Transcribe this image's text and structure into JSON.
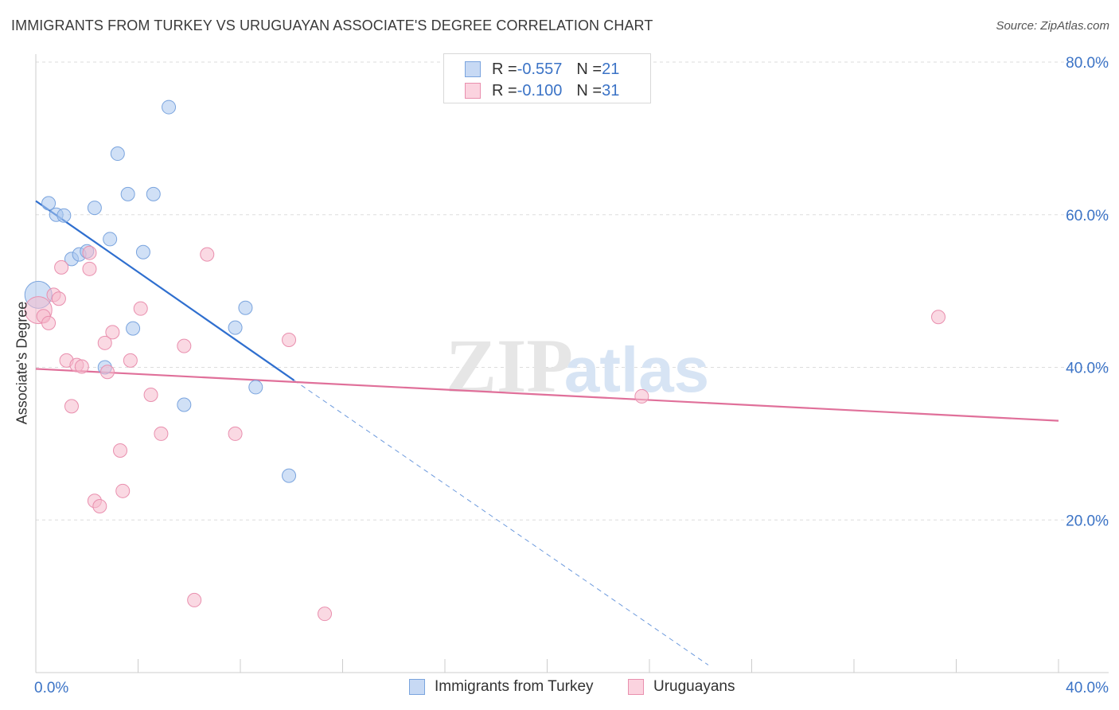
{
  "header": {
    "title": "IMMIGRANTS FROM TURKEY VS URUGUAYAN ASSOCIATE'S DEGREE CORRELATION CHART",
    "source": "Source: ZipAtlas.com"
  },
  "watermark": {
    "zip": "ZIP",
    "atlas": "atlas"
  },
  "legend": {
    "rows": [
      {
        "r_label": "R = ",
        "r_value": "-0.557",
        "n_label": "N = ",
        "n_value": "21",
        "color": "#a9c6ef"
      },
      {
        "r_label": "R = ",
        "r_value": "-0.100",
        "n_label": "N = ",
        "n_value": "31",
        "color": "#f5b9cc"
      }
    ]
  },
  "bottom_legend": {
    "items": [
      {
        "label": "Immigrants from Turkey",
        "color": "#a9c6ef"
      },
      {
        "label": "Uruguayans",
        "color": "#f5b9cc"
      }
    ]
  },
  "chart_data": {
    "type": "scatter",
    "title": "IMMIGRANTS FROM TURKEY VS URUGUAYAN ASSOCIATE'S DEGREE CORRELATION CHART",
    "xlabel": "",
    "ylabel": "Associate's Degree",
    "xlim": [
      0,
      40
    ],
    "ylim": [
      0,
      80
    ],
    "x_tick_labels": [
      "0.0%",
      "40.0%"
    ],
    "y_ticks": [
      20,
      40,
      60,
      80
    ],
    "y_tick_labels": [
      "20.0%",
      "40.0%",
      "60.0%",
      "80.0%"
    ],
    "grid": true,
    "series": [
      {
        "name": "Immigrants from Turkey",
        "color": "#a9c6ef",
        "stroke": "#7aa4de",
        "line_color": "#2f6fcf",
        "points": [
          {
            "x": 0.1,
            "y": 49.5,
            "big": true
          },
          {
            "x": 0.5,
            "y": 61.5
          },
          {
            "x": 0.8,
            "y": 60.0
          },
          {
            "x": 1.1,
            "y": 59.9
          },
          {
            "x": 1.4,
            "y": 54.2
          },
          {
            "x": 1.7,
            "y": 54.8
          },
          {
            "x": 2.0,
            "y": 55.2
          },
          {
            "x": 2.3,
            "y": 60.9
          },
          {
            "x": 2.9,
            "y": 56.8
          },
          {
            "x": 3.2,
            "y": 68.0
          },
          {
            "x": 3.6,
            "y": 62.7
          },
          {
            "x": 4.2,
            "y": 55.1
          },
          {
            "x": 4.6,
            "y": 62.7
          },
          {
            "x": 5.2,
            "y": 74.1
          },
          {
            "x": 7.8,
            "y": 45.2
          },
          {
            "x": 8.2,
            "y": 47.8
          },
          {
            "x": 3.8,
            "y": 45.1
          },
          {
            "x": 2.7,
            "y": 40.0
          },
          {
            "x": 5.8,
            "y": 35.1
          },
          {
            "x": 8.6,
            "y": 37.4
          },
          {
            "x": 9.9,
            "y": 25.8
          }
        ],
        "trend": {
          "x1": 0,
          "y1": 61.8,
          "x2": 10.1,
          "y2": 38.3
        },
        "trend_dashed": {
          "x1": 10.1,
          "y1": 38.3,
          "x2": 26.3,
          "y2": 1.0
        }
      },
      {
        "name": "Uruguayans",
        "color": "#f5b9cc",
        "stroke": "#e98fae",
        "line_color": "#e0709a",
        "points": [
          {
            "x": 0.1,
            "y": 47.5,
            "big": true
          },
          {
            "x": 0.3,
            "y": 46.7
          },
          {
            "x": 0.5,
            "y": 45.8
          },
          {
            "x": 0.7,
            "y": 49.5
          },
          {
            "x": 0.9,
            "y": 49.0
          },
          {
            "x": 1.0,
            "y": 53.1
          },
          {
            "x": 1.2,
            "y": 40.9
          },
          {
            "x": 1.4,
            "y": 34.9
          },
          {
            "x": 1.6,
            "y": 40.3
          },
          {
            "x": 1.8,
            "y": 40.1
          },
          {
            "x": 2.1,
            "y": 55.0
          },
          {
            "x": 2.1,
            "y": 52.9
          },
          {
            "x": 2.3,
            "y": 22.5
          },
          {
            "x": 2.5,
            "y": 21.8
          },
          {
            "x": 2.8,
            "y": 39.4
          },
          {
            "x": 3.0,
            "y": 44.6
          },
          {
            "x": 2.7,
            "y": 43.2
          },
          {
            "x": 3.3,
            "y": 29.1
          },
          {
            "x": 3.4,
            "y": 23.8
          },
          {
            "x": 3.7,
            "y": 40.9
          },
          {
            "x": 4.1,
            "y": 47.7
          },
          {
            "x": 4.5,
            "y": 36.4
          },
          {
            "x": 4.9,
            "y": 31.3
          },
          {
            "x": 5.8,
            "y": 42.8
          },
          {
            "x": 6.2,
            "y": 9.5
          },
          {
            "x": 6.7,
            "y": 54.8
          },
          {
            "x": 7.8,
            "y": 31.3
          },
          {
            "x": 9.9,
            "y": 43.6
          },
          {
            "x": 11.3,
            "y": 7.7
          },
          {
            "x": 23.7,
            "y": 36.2
          },
          {
            "x": 35.3,
            "y": 46.6
          }
        ],
        "trend": {
          "x1": 0,
          "y1": 39.8,
          "x2": 40,
          "y2": 33.0
        }
      }
    ]
  }
}
